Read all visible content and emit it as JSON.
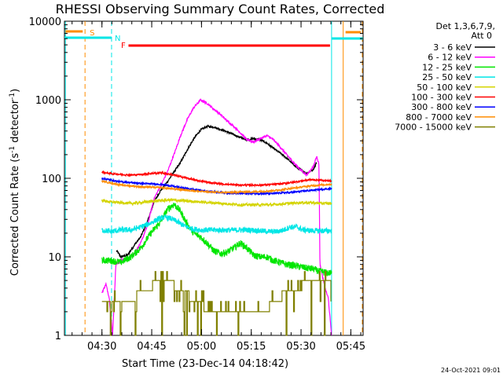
{
  "chart_data": {
    "type": "line",
    "title": "RHESSI Observing Summary Count Rates, Corrected",
    "xlabel": "Start Time (23-Dec-14 04:18:42)",
    "ylabel": "Corrected Count Rate (s⁻¹ detector⁻¹)",
    "ylabel_main": "Corrected Count Rate (s",
    "ylabel_sup1": "-1",
    "ylabel_mid": " detector",
    "ylabel_sup2": "-1",
    "ylabel_end": ")",
    "yscale": "log",
    "ylim": [
      1,
      10000
    ],
    "xlim_minutes": [
      0,
      90
    ],
    "x_unit": "minutes after 04:18:42",
    "yticks": [
      {
        "label": "1",
        "value": 1
      },
      {
        "label": "10",
        "value": 10
      },
      {
        "label": "100",
        "value": 100
      },
      {
        "label": "1000",
        "value": 1000
      },
      {
        "label": "10000",
        "value": 10000
      }
    ],
    "xticks": [
      {
        "label": "04:30",
        "minutes": 11.3
      },
      {
        "label": "04:45",
        "minutes": 26.3
      },
      {
        "label": "05:00",
        "minutes": 41.3
      },
      {
        "label": "05:15",
        "minutes": 56.3
      },
      {
        "label": "05:30",
        "minutes": 71.3
      },
      {
        "label": "05:45",
        "minutes": 86.3
      }
    ],
    "legend_header": [
      "Det 1,3,6,7,9,",
      "Att 0"
    ],
    "legend_placement": "outside-right",
    "series": [
      {
        "name": "3 - 6 keV",
        "color": "#000000",
        "noise": 0.03,
        "points": [
          [
            15.7,
            12
          ],
          [
            17,
            10
          ],
          [
            19,
            10.5
          ],
          [
            21,
            14
          ],
          [
            23,
            18
          ],
          [
            25,
            28
          ],
          [
            27,
            50
          ],
          [
            29,
            70
          ],
          [
            31,
            90
          ],
          [
            33,
            120
          ],
          [
            35,
            160
          ],
          [
            37,
            230
          ],
          [
            39,
            320
          ],
          [
            41,
            410
          ],
          [
            43,
            460
          ],
          [
            45,
            450
          ],
          [
            47,
            420
          ],
          [
            49,
            390
          ],
          [
            51,
            360
          ],
          [
            53,
            330
          ],
          [
            55,
            310
          ],
          [
            57,
            320
          ],
          [
            59,
            310
          ],
          [
            61,
            280
          ],
          [
            63,
            240
          ],
          [
            65,
            210
          ],
          [
            67,
            180
          ],
          [
            69,
            150
          ],
          [
            71,
            130
          ],
          [
            73,
            115
          ],
          [
            75,
            130
          ],
          [
            76,
            160
          ]
        ]
      },
      {
        "name": "6 - 12 keV",
        "color": "#ff00ff",
        "noise": 0.03,
        "points": [
          [
            11.3,
            3.5
          ],
          [
            12.5,
            4.5
          ],
          [
            13.5,
            3
          ],
          [
            14.5,
            1
          ],
          [
            15.5,
            8
          ],
          [
            17,
            9
          ],
          [
            19,
            9.5
          ],
          [
            21,
            11
          ],
          [
            23,
            15
          ],
          [
            25,
            25
          ],
          [
            27,
            55
          ],
          [
            29,
            80
          ],
          [
            31,
            120
          ],
          [
            33,
            200
          ],
          [
            35,
            350
          ],
          [
            37,
            560
          ],
          [
            39,
            800
          ],
          [
            41,
            990
          ],
          [
            43,
            900
          ],
          [
            45,
            760
          ],
          [
            47,
            650
          ],
          [
            49,
            540
          ],
          [
            51,
            460
          ],
          [
            53,
            380
          ],
          [
            55,
            310
          ],
          [
            57,
            290
          ],
          [
            59,
            320
          ],
          [
            61,
            350
          ],
          [
            63,
            310
          ],
          [
            65,
            250
          ],
          [
            67,
            200
          ],
          [
            69,
            160
          ],
          [
            71,
            130
          ],
          [
            73,
            110
          ],
          [
            75,
            140
          ],
          [
            76,
            190
          ],
          [
            76.7,
            150
          ],
          [
            77,
            8
          ],
          [
            78.5,
            4
          ],
          [
            79.5,
            3
          ],
          [
            80.5,
            1
          ]
        ]
      },
      {
        "name": "12 - 25 keV",
        "color": "#00e600",
        "noise": 0.1,
        "points": [
          [
            11.3,
            9
          ],
          [
            14,
            9
          ],
          [
            17,
            8.5
          ],
          [
            20,
            10
          ],
          [
            23,
            13
          ],
          [
            26,
            20
          ],
          [
            29,
            28
          ],
          [
            31,
            40
          ],
          [
            33,
            47
          ],
          [
            35,
            38
          ],
          [
            37,
            26
          ],
          [
            39,
            20
          ],
          [
            41,
            18
          ],
          [
            43,
            15
          ],
          [
            45,
            12
          ],
          [
            47,
            11
          ],
          [
            49,
            11.5
          ],
          [
            51,
            13
          ],
          [
            53,
            15
          ],
          [
            55,
            13
          ],
          [
            57,
            10.5
          ],
          [
            59,
            10
          ],
          [
            61,
            10
          ],
          [
            63,
            9
          ],
          [
            65,
            8.5
          ],
          [
            67,
            8
          ],
          [
            69,
            7.8
          ],
          [
            71,
            7.5
          ],
          [
            73,
            7.2
          ],
          [
            75,
            7
          ],
          [
            77,
            6.5
          ],
          [
            79,
            6.3
          ],
          [
            80.5,
            6.2
          ]
        ]
      },
      {
        "name": "25 - 50 keV",
        "color": "#00e6e6",
        "noise": 0.08,
        "points": [
          [
            11.3,
            22
          ],
          [
            14,
            21
          ],
          [
            17,
            22
          ],
          [
            20,
            22
          ],
          [
            23,
            24
          ],
          [
            26,
            27
          ],
          [
            28,
            30
          ],
          [
            30,
            32
          ],
          [
            32,
            31
          ],
          [
            34,
            28
          ],
          [
            36,
            25
          ],
          [
            38,
            23
          ],
          [
            41,
            22
          ],
          [
            44,
            22
          ],
          [
            47,
            22
          ],
          [
            50,
            22
          ],
          [
            53,
            22
          ],
          [
            56,
            22
          ],
          [
            59,
            21.5
          ],
          [
            62,
            21
          ],
          [
            64,
            21
          ],
          [
            66,
            22
          ],
          [
            68,
            24
          ],
          [
            70,
            24
          ],
          [
            72,
            22
          ],
          [
            75,
            21.5
          ],
          [
            78,
            21.5
          ],
          [
            80.5,
            21.5
          ]
        ]
      },
      {
        "name": "50 - 100 keV",
        "color": "#d4d400",
        "noise": 0.04,
        "points": [
          [
            11.3,
            52
          ],
          [
            14,
            50
          ],
          [
            17,
            49
          ],
          [
            20,
            48
          ],
          [
            23,
            49
          ],
          [
            26,
            51
          ],
          [
            29,
            52
          ],
          [
            32,
            53
          ],
          [
            35,
            52
          ],
          [
            38,
            51
          ],
          [
            41,
            50
          ],
          [
            44,
            49
          ],
          [
            47,
            48
          ],
          [
            50,
            47
          ],
          [
            53,
            46
          ],
          [
            56,
            46
          ],
          [
            59,
            46
          ],
          [
            62,
            46
          ],
          [
            65,
            47
          ],
          [
            68,
            48
          ],
          [
            71,
            49
          ],
          [
            74,
            49
          ],
          [
            77,
            48
          ],
          [
            80.5,
            48
          ]
        ]
      },
      {
        "name": "100 - 300 keV",
        "color": "#ff0000",
        "noise": 0.025,
        "points": [
          [
            11.3,
            120
          ],
          [
            14,
            115
          ],
          [
            17,
            112
          ],
          [
            20,
            110
          ],
          [
            23,
            112
          ],
          [
            26,
            115
          ],
          [
            29,
            118
          ],
          [
            32,
            112
          ],
          [
            35,
            105
          ],
          [
            38,
            98
          ],
          [
            41,
            92
          ],
          [
            44,
            88
          ],
          [
            47,
            85
          ],
          [
            50,
            83
          ],
          [
            53,
            82
          ],
          [
            56,
            82
          ],
          [
            59,
            82
          ],
          [
            62,
            83
          ],
          [
            65,
            85
          ],
          [
            68,
            88
          ],
          [
            71,
            92
          ],
          [
            74,
            96
          ],
          [
            77,
            95
          ],
          [
            80.5,
            92
          ]
        ]
      },
      {
        "name": "300 - 800 keV",
        "color": "#0000ff",
        "noise": 0.025,
        "points": [
          [
            11.3,
            100
          ],
          [
            14,
            95
          ],
          [
            17,
            90
          ],
          [
            20,
            88
          ],
          [
            23,
            86
          ],
          [
            26,
            85
          ],
          [
            29,
            84
          ],
          [
            32,
            80
          ],
          [
            35,
            76
          ],
          [
            38,
            73
          ],
          [
            41,
            70
          ],
          [
            44,
            68
          ],
          [
            47,
            66
          ],
          [
            50,
            65
          ],
          [
            53,
            64
          ],
          [
            56,
            64
          ],
          [
            59,
            64
          ],
          [
            62,
            64
          ],
          [
            65,
            65
          ],
          [
            68,
            66
          ],
          [
            71,
            68
          ],
          [
            74,
            70
          ],
          [
            77,
            72
          ],
          [
            80.5,
            74
          ]
        ]
      },
      {
        "name": "800 - 7000 keV",
        "color": "#ff8c00",
        "noise": 0.025,
        "points": [
          [
            11.3,
            92
          ],
          [
            14,
            87
          ],
          [
            17,
            82
          ],
          [
            20,
            80
          ],
          [
            23,
            78
          ],
          [
            26,
            77
          ],
          [
            29,
            76
          ],
          [
            32,
            74
          ],
          [
            35,
            72
          ],
          [
            38,
            70
          ],
          [
            41,
            68
          ],
          [
            44,
            67
          ],
          [
            47,
            66
          ],
          [
            50,
            66
          ],
          [
            53,
            67
          ],
          [
            56,
            67
          ],
          [
            59,
            68
          ],
          [
            62,
            69
          ],
          [
            65,
            71
          ],
          [
            68,
            74
          ],
          [
            71,
            77
          ],
          [
            74,
            80
          ],
          [
            77,
            82
          ],
          [
            80.5,
            84
          ]
        ]
      },
      {
        "name": "7000 - 15000 keV",
        "color": "#808000",
        "step": true,
        "levels": [
          2,
          2.7,
          3.7,
          5,
          6.5
        ],
        "points": [
          [
            11.3,
            2.4
          ],
          [
            15,
            2.7
          ],
          [
            19,
            2.9
          ],
          [
            23,
            3.3
          ],
          [
            26,
            4.2
          ],
          [
            29,
            5.2
          ],
          [
            32,
            4.5
          ],
          [
            35,
            3.8
          ],
          [
            38,
            3.0
          ],
          [
            41,
            2.5
          ],
          [
            44,
            2.0
          ],
          [
            47,
            1.9
          ],
          [
            50,
            1.8
          ],
          [
            53,
            1.8
          ],
          [
            56,
            1.9
          ],
          [
            59,
            2.1
          ],
          [
            62,
            2.4
          ],
          [
            65,
            3.1
          ],
          [
            68,
            3.7
          ],
          [
            71,
            4.2
          ],
          [
            74,
            4.8
          ],
          [
            77,
            4.8
          ],
          [
            80.5,
            4.4
          ]
        ]
      }
    ],
    "annotations": {
      "flags": [
        {
          "label": "S",
          "color": "#ff8c00"
        },
        {
          "label": "N",
          "color": "#00e6e6"
        },
        {
          "label": "F",
          "color": "#ff0000"
        }
      ],
      "vertical_lines": [
        {
          "minutes": 0.3,
          "color": "#00e6e6",
          "style": "solid"
        },
        {
          "minutes": 6.2,
          "color": "#ff8c00",
          "style": "dashed"
        },
        {
          "minutes": 14.2,
          "color": "#00e6e6",
          "style": "dashed"
        },
        {
          "minutes": 80.5,
          "color": "#00e6e6",
          "style": "solid"
        },
        {
          "minutes": 84.0,
          "color": "#ff8c00",
          "style": "solid"
        },
        {
          "minutes": 91.0,
          "color": "#ff8c00",
          "style": "dashed"
        }
      ]
    }
  },
  "timestamp": "24-Oct-2021 09:01"
}
